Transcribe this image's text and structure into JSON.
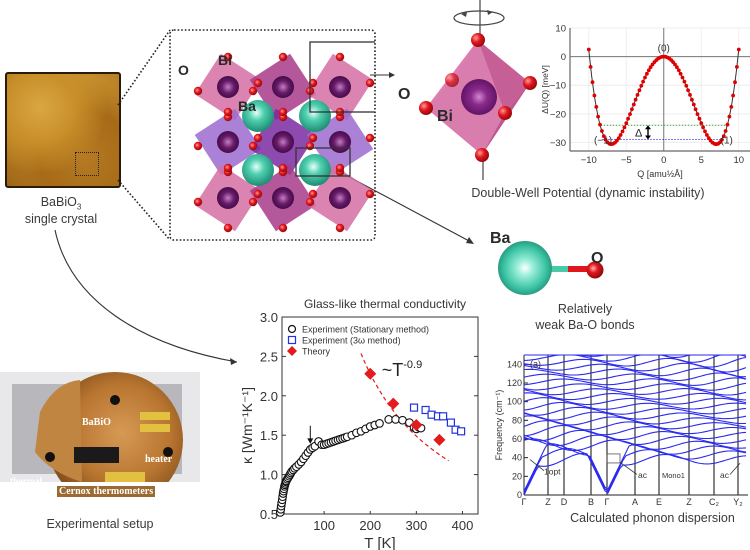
{
  "crystal": {
    "formula_main": "BaBiO",
    "formula_sub": "3",
    "caption_line2": "single crystal"
  },
  "structure": {
    "atom_labels": {
      "O": "O",
      "Bi": "Bi",
      "Ba": "Ba"
    }
  },
  "octahedron": {
    "atom_labels": {
      "O": "O",
      "Bi": "Bi"
    }
  },
  "double_well_caption": "Double-Well Potential (dynamic instability)",
  "bond": {
    "atom_labels": {
      "Ba": "Ba",
      "O": "O"
    },
    "caption_line1": "Relatively",
    "caption_line2": "weak Ba-O bonds"
  },
  "setup": {
    "caption": "Experimental setup",
    "annotations": {
      "sample": "BaBiO",
      "heater": "heater",
      "thermal_bath_1": "thermal",
      "thermal_bath_2": "bath",
      "thermometers": "Cernox thermometers"
    }
  },
  "phonon_caption": "Calculated phonon dispersion",
  "colors": {
    "theory_red": "#e41a1c",
    "exp_blue": "#2233dd",
    "phonon_blue": "#2a2af0",
    "ba_teal": "#3cc4a4",
    "o_red": "#e0161c",
    "bi_purple": "#6a1a6a",
    "octa_pink": "#d56fa5",
    "octa_violet": "#9b6bd0"
  },
  "chart_data": [
    {
      "type": "scatter",
      "title": "",
      "xlabel": "Q [amu½Å]",
      "ylabel": "ΔU(Q) [meV]",
      "xlim": [
        -12.5,
        11.5
      ],
      "ylim": [
        -33,
        10
      ],
      "xticks": [
        -10,
        -5,
        0,
        5,
        10
      ],
      "yticks": [
        10,
        0,
        -10,
        -20,
        -30
      ],
      "grid": true,
      "annotations": {
        "state_0": "(0)",
        "state_m1": "(−1)",
        "state_1": "(1)",
        "delta": "Δ"
      },
      "levels": {
        "green_dotted": -24,
        "blue_dotted": -29
      },
      "model": {
        "form": "a*Q^4 - b*Q^2",
        "a": 0.01275,
        "b": 1.25
      },
      "series": [
        {
          "name": "ΔU(Q)",
          "q_range": [
            -10,
            10
          ],
          "q_step": 0.25
        }
      ]
    },
    {
      "type": "scatter",
      "title": "Glass-like thermal conductivity",
      "xlabel": "T [K]",
      "ylabel": "κ [Wm⁻¹K⁻¹]",
      "xlim": [
        0,
        425
      ],
      "ylim": [
        0.5,
        3.0
      ],
      "xticks": [
        100,
        200,
        300,
        400
      ],
      "yticks": [
        0.5,
        1.0,
        1.5,
        2.0,
        2.5,
        3.0
      ],
      "legend_position": "top-left",
      "annotation": "~T",
      "annotation_exp": "-0.9",
      "arrow_at_T": 70,
      "series": [
        {
          "name": "Experiment (Stationary method)",
          "marker": "circle",
          "x": [
            5,
            6,
            7,
            8,
            9,
            10,
            11,
            12,
            13,
            14,
            15,
            16,
            17,
            18,
            20,
            22,
            24,
            26,
            28,
            30,
            33,
            36,
            40,
            45,
            50,
            55,
            60,
            65,
            70,
            75,
            80,
            88,
            95,
            100,
            105,
            110,
            115,
            120,
            125,
            130,
            135,
            140,
            145,
            150,
            160,
            170,
            180,
            190,
            200,
            210,
            220,
            240,
            255,
            270,
            285,
            295,
            300,
            305,
            310
          ],
          "y": [
            0.52,
            0.56,
            0.6,
            0.64,
            0.68,
            0.72,
            0.76,
            0.79,
            0.82,
            0.85,
            0.87,
            0.89,
            0.91,
            0.92,
            0.94,
            0.96,
            0.98,
            1.0,
            1.02,
            1.04,
            1.06,
            1.08,
            1.1,
            1.13,
            1.16,
            1.2,
            1.24,
            1.28,
            1.32,
            1.34,
            1.36,
            1.42,
            1.38,
            1.38,
            1.39,
            1.4,
            1.41,
            1.42,
            1.43,
            1.44,
            1.45,
            1.46,
            1.47,
            1.48,
            1.5,
            1.53,
            1.55,
            1.58,
            1.61,
            1.63,
            1.65,
            1.7,
            1.7,
            1.69,
            1.66,
            1.6,
            1.58,
            1.6,
            1.59
          ]
        },
        {
          "name": "Experiment (3ω method)",
          "marker": "square",
          "x": [
            295,
            320,
            333,
            347,
            358,
            375,
            385,
            397
          ],
          "y": [
            1.85,
            1.82,
            1.76,
            1.74,
            1.74,
            1.66,
            1.57,
            1.55
          ]
        },
        {
          "name": "Theory",
          "marker": "diamond",
          "x": [
            200,
            250,
            300,
            350
          ],
          "y": [
            2.28,
            1.9,
            1.63,
            1.44
          ]
        },
        {
          "name": "~T^-0.9 fit",
          "marker": "dashed-line",
          "x_range": [
            180,
            370
          ],
          "form": "2.28*(T/200)^-0.9"
        }
      ]
    },
    {
      "type": "line",
      "title": "",
      "xlabel": "",
      "ylabel": "Frequency (cm⁻¹)",
      "ylim": [
        0,
        150
      ],
      "yticks": [
        0,
        20,
        40,
        60,
        80,
        100,
        120,
        140
      ],
      "panel_label": "(a)",
      "kpoints": [
        "Γ",
        "Z",
        "D",
        "B",
        "Γ",
        "A",
        "E",
        "Z",
        "C₂",
        "Y₂"
      ],
      "annotations": {
        "lopt": "1opt",
        "ac_1": "ac",
        "ac_2": "ac",
        "phase": "Mono1"
      },
      "series_count": 24
    }
  ]
}
